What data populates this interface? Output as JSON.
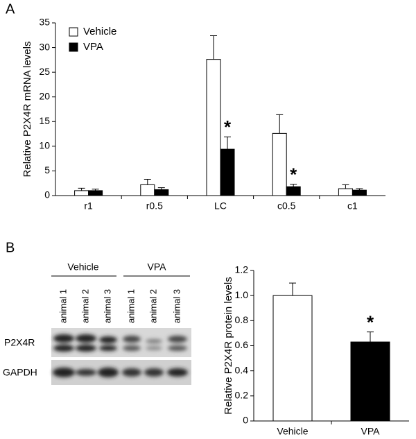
{
  "panels": [
    "A",
    "B"
  ],
  "chart_data": [
    {
      "type": "bar",
      "y_label": "Relative P2X4R mRNA levels",
      "categories": [
        "r1",
        "r0.5",
        "LC",
        "c0.5",
        "c1"
      ],
      "series": [
        {
          "name": "Vehicle",
          "color": "#ffffff",
          "values": [
            1.0,
            2.2,
            27.6,
            12.6,
            1.4
          ],
          "errors": [
            0.5,
            1.1,
            4.8,
            3.8,
            0.8
          ]
        },
        {
          "name": "VPA",
          "color": "#000000",
          "values": [
            1.0,
            1.2,
            9.4,
            1.8,
            1.1
          ],
          "errors": [
            0.3,
            0.4,
            2.5,
            0.5,
            0.3
          ]
        }
      ],
      "ylim": [
        0,
        35
      ],
      "yticks": [
        0,
        5,
        10,
        15,
        20,
        25,
        30,
        35
      ],
      "legend": "upper left",
      "annotations": [
        "*",
        "*"
      ]
    },
    {
      "type": "bar",
      "y_label": "Relative P2X4R protein levels",
      "categories": [
        "Vehicle",
        "VPA"
      ],
      "series": [
        {
          "colors": [
            "#ffffff",
            "#000000"
          ],
          "values": [
            1.0,
            0.63
          ],
          "errors": [
            0.1,
            0.08
          ]
        }
      ],
      "ylim": [
        0,
        1.2
      ],
      "yticks": [
        0,
        0.2,
        0.4,
        0.6,
        {
          "value": 0.8,
          "label": "0.8"
        },
        {
          "value": 1.0,
          "label": "1.0"
        },
        1.2
      ],
      "annotations": [
        "*"
      ]
    }
  ],
  "blot": {
    "groups": [
      "Vehicle",
      "VPA"
    ],
    "lanes": [
      "animal 1",
      "animal 2",
      "animal 3",
      "animal 1",
      "animal 2",
      "animal 3"
    ],
    "rows": [
      "P2X4R",
      "GAPDH"
    ]
  }
}
